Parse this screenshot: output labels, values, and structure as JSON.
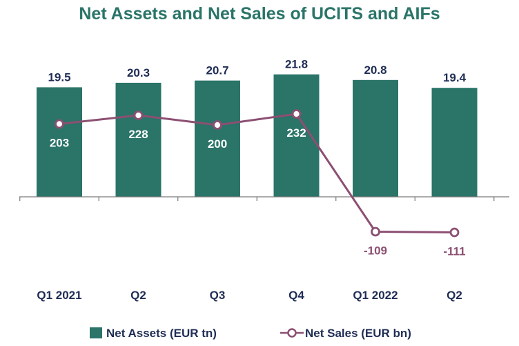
{
  "colors": {
    "title": "#2a7468",
    "bar": "#2a7468",
    "line": "#8c4f72",
    "bar_label": "#1f2d55",
    "category_label": "#1f2d55",
    "legend_text": "#1f2d55",
    "axis": "#7a7a7a"
  },
  "legend": {
    "assets_label": "Net Assets (EUR tn)",
    "sales_label": "Net Sales (EUR bn)"
  },
  "chart_data": {
    "type": "bar",
    "title": "Net Assets and Net Sales of UCITS and AIFs",
    "categories": [
      "Q1 2021",
      "Q2",
      "Q3",
      "Q4",
      "Q1 2022",
      "Q2"
    ],
    "series": [
      {
        "name": "Net Assets (EUR tn)",
        "type": "bar",
        "values": [
          19.5,
          20.3,
          20.7,
          21.8,
          20.8,
          19.4
        ],
        "value_labels": [
          "19.5",
          "20.3",
          "20.7",
          "21.8",
          "20.8",
          "19.4"
        ],
        "ylim": [
          0,
          22.5
        ]
      },
      {
        "name": "Net Sales (EUR bn)",
        "type": "line",
        "marker": "hollow-circle",
        "values": [
          203,
          228,
          200,
          232,
          -109,
          -111
        ],
        "value_labels": [
          "203",
          "228",
          "200",
          "232",
          "-109",
          "-111"
        ],
        "ylim": [
          -188,
          335
        ]
      }
    ],
    "legend_position": "bottom",
    "grid": false
  }
}
